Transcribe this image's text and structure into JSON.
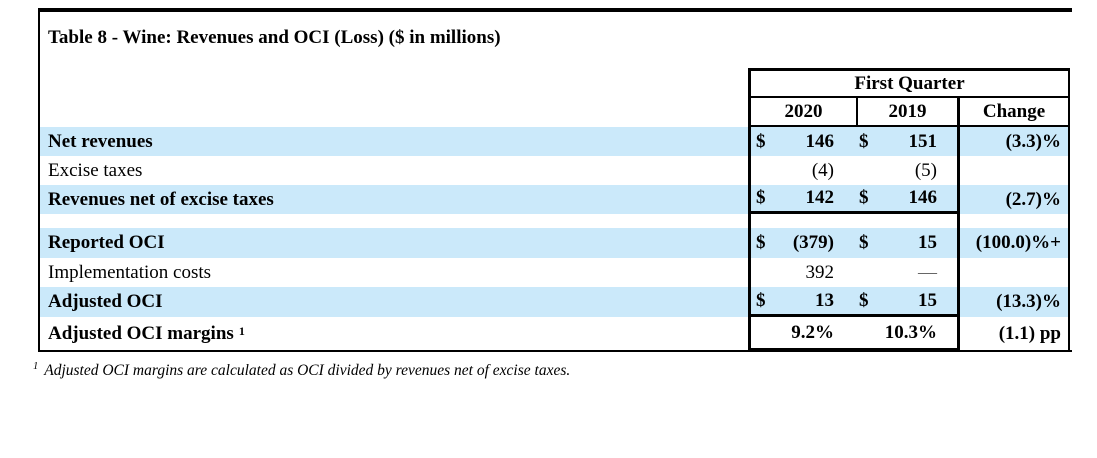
{
  "title": "Table 8 - Wine: Revenues and OCI (Loss) ($ in millions)",
  "colors": {
    "row_highlight": "#cbe9fa",
    "border": "#000000"
  },
  "table": {
    "group_header": "First Quarter",
    "columns": {
      "y2020": "2020",
      "y2019": "2019",
      "change": "Change"
    },
    "rows": [
      {
        "label": "Net revenues",
        "cur2020": "$",
        "v2020": "146",
        "cur2019": "$",
        "v2019": "151",
        "change": "(3.3)%"
      },
      {
        "label": "Excise taxes",
        "v2020": "(4)",
        "v2019": "(5)",
        "change": ""
      },
      {
        "label": "Revenues net of excise taxes",
        "cur2020": "$",
        "v2020": "142",
        "cur2019": "$",
        "v2019": "146",
        "change": "(2.7)%"
      },
      {
        "label": "Reported OCI",
        "cur2020": "$",
        "v2020": "(379)",
        "cur2019": "$",
        "v2019": "15",
        "change": "(100.0)%+"
      },
      {
        "label": "Implementation costs",
        "v2020": "392",
        "v2019": "—",
        "change": ""
      },
      {
        "label": "Adjusted OCI",
        "cur2020": "$",
        "v2020": "13",
        "cur2019": "$",
        "v2019": "15",
        "change": "(13.3)%"
      },
      {
        "label": "Adjusted OCI margins",
        "label_sup": "1",
        "v2020": "9.2%",
        "v2019": "10.3%",
        "change": "(1.1) pp"
      }
    ]
  },
  "footnote": {
    "marker": "1",
    "text": "Adjusted OCI margins are calculated as OCI divided by revenues net of excise taxes."
  }
}
